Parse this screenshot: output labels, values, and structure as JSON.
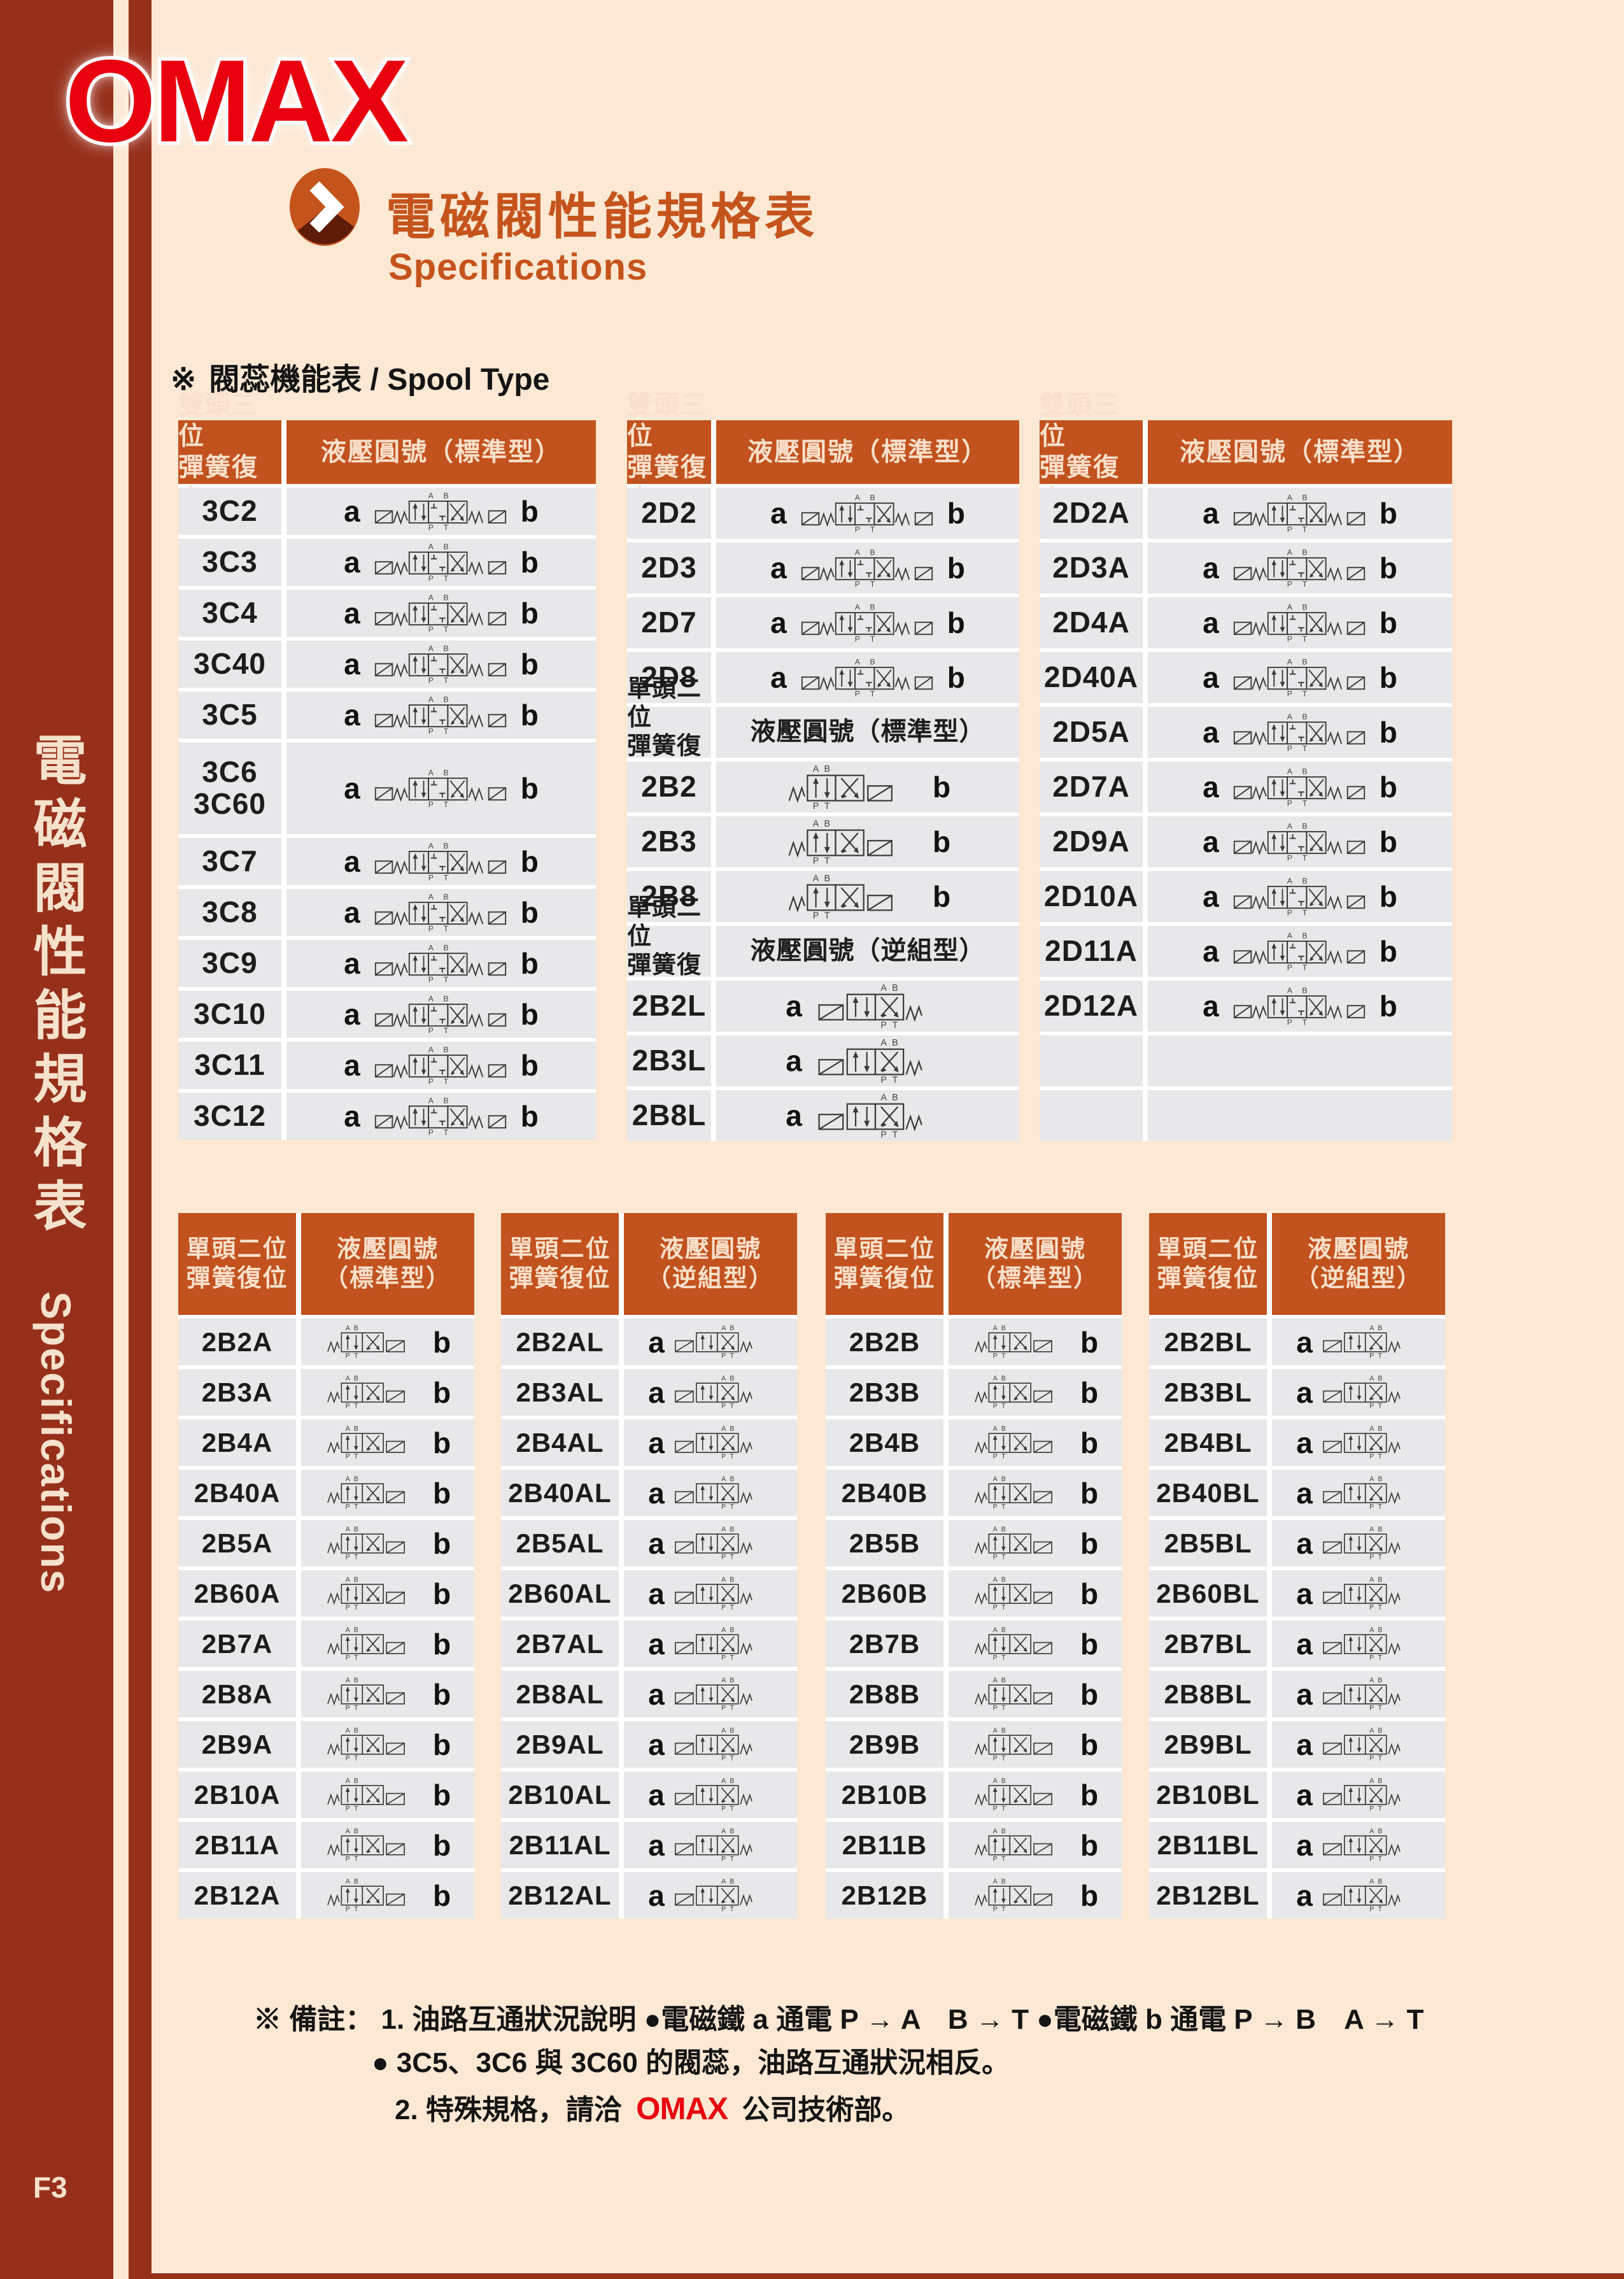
{
  "colors": {
    "page_bg": "#FCE8D3",
    "panel_red": "#97301B",
    "header_orange": "#C2521E",
    "cell_gray": "#E8E7E9",
    "title_orange": "#C5541C",
    "logo_red": "#E8000F",
    "header_text": "#F9E0CB"
  },
  "logo": {
    "text": "OMAX"
  },
  "sidebar": {
    "vertical_title": "電磁閥性能規格表",
    "vertical_subtitle": "Specifications",
    "page_number": "F3"
  },
  "header": {
    "title": "電磁閥性能規格表",
    "subtitle": "Specifications"
  },
  "section": {
    "marker": "※",
    "label": "閥蕊機能表 / Spool Type"
  },
  "top_tables": [
    {
      "header": {
        "col1": [
          "雙頭三位",
          "彈簧復中"
        ],
        "col2": [
          "液壓圓號（標準型）"
        ]
      },
      "rows": [
        {
          "code": [
            "3C2"
          ],
          "a": "a",
          "b": "b",
          "sym": "3pos"
        },
        {
          "code": [
            "3C3"
          ],
          "a": "a",
          "b": "b",
          "sym": "3pos"
        },
        {
          "code": [
            "3C4"
          ],
          "a": "a",
          "b": "b",
          "sym": "3pos"
        },
        {
          "code": [
            "3C40"
          ],
          "a": "a",
          "b": "b",
          "sym": "3pos"
        },
        {
          "code": [
            "3C5"
          ],
          "a": "a",
          "b": "b",
          "sym": "3pos"
        },
        {
          "code": [
            "3C6",
            "3C60"
          ],
          "a": "a",
          "b": "b",
          "sym": "3pos",
          "tall": true
        },
        {
          "code": [
            "3C7"
          ],
          "a": "a",
          "b": "b",
          "sym": "3pos"
        },
        {
          "code": [
            "3C8"
          ],
          "a": "a",
          "b": "b",
          "sym": "3pos"
        },
        {
          "code": [
            "3C9"
          ],
          "a": "a",
          "b": "b",
          "sym": "3pos"
        },
        {
          "code": [
            "3C10"
          ],
          "a": "a",
          "b": "b",
          "sym": "3pos"
        },
        {
          "code": [
            "3C11"
          ],
          "a": "a",
          "b": "b",
          "sym": "3pos"
        },
        {
          "code": [
            "3C12"
          ],
          "a": "a",
          "b": "b",
          "sym": "3pos"
        }
      ]
    },
    {
      "header": {
        "col1": [
          "雙頭三位",
          "彈簧復中"
        ],
        "col2": [
          "液壓圓號（標準型）"
        ]
      },
      "rows": [
        {
          "code": [
            "2D2"
          ],
          "a": "a",
          "b": "b",
          "sym": "3pos"
        },
        {
          "code": [
            "2D3"
          ],
          "a": "a",
          "b": "b",
          "sym": "3pos"
        },
        {
          "code": [
            "2D7"
          ],
          "a": "a",
          "b": "b",
          "sym": "3pos"
        },
        {
          "code": [
            "2D8"
          ],
          "a": "a",
          "b": "b",
          "sym": "3pos"
        },
        {
          "subheader": true,
          "col1": [
            "單頭二位",
            "彈簧復位"
          ],
          "col2": [
            "液壓圓號（標準型）"
          ]
        },
        {
          "code": [
            "2B2"
          ],
          "b": "b",
          "sym": "2b"
        },
        {
          "code": [
            "2B3"
          ],
          "b": "b",
          "sym": "2b"
        },
        {
          "code": [
            "2B8"
          ],
          "b": "b",
          "sym": "2b"
        },
        {
          "subheader": true,
          "col1": [
            "單頭二位",
            "彈簧復位"
          ],
          "col2": [
            "液壓圓號（逆組型）"
          ]
        },
        {
          "code": [
            "2B2L"
          ],
          "a": "a",
          "sym": "2a"
        },
        {
          "code": [
            "2B3L"
          ],
          "a": "a",
          "sym": "2a"
        },
        {
          "code": [
            "2B8L"
          ],
          "a": "a",
          "sym": "2a"
        }
      ]
    },
    {
      "header": {
        "col1": [
          "雙頭三位",
          "彈簧復中"
        ],
        "col2": [
          "液壓圓號（標準型）"
        ]
      },
      "rows": [
        {
          "code": [
            "2D2A"
          ],
          "a": "a",
          "b": "b",
          "sym": "3pos"
        },
        {
          "code": [
            "2D3A"
          ],
          "a": "a",
          "b": "b",
          "sym": "3pos"
        },
        {
          "code": [
            "2D4A"
          ],
          "a": "a",
          "b": "b",
          "sym": "3pos"
        },
        {
          "code": [
            "2D40A"
          ],
          "a": "a",
          "b": "b",
          "sym": "3pos"
        },
        {
          "code": [
            "2D5A"
          ],
          "a": "a",
          "b": "b",
          "sym": "3pos"
        },
        {
          "code": [
            "2D7A"
          ],
          "a": "a",
          "b": "b",
          "sym": "3pos"
        },
        {
          "code": [
            "2D9A"
          ],
          "a": "a",
          "b": "b",
          "sym": "3pos"
        },
        {
          "code": [
            "2D10A"
          ],
          "a": "a",
          "b": "b",
          "sym": "3pos"
        },
        {
          "code": [
            "2D11A"
          ],
          "a": "a",
          "b": "b",
          "sym": "3pos"
        },
        {
          "code": [
            "2D12A"
          ],
          "a": "a",
          "b": "b",
          "sym": "3pos"
        },
        {
          "empty": true
        },
        {
          "empty": true
        }
      ]
    }
  ],
  "bottom_tables": [
    {
      "header": {
        "col1": [
          "單頭二位",
          "彈簧復位"
        ],
        "col2": [
          "液壓圓號",
          "（標準型）"
        ]
      },
      "rows": [
        {
          "code": [
            "2B2A"
          ],
          "b": "b",
          "sym": "2b"
        },
        {
          "code": [
            "2B3A"
          ],
          "b": "b",
          "sym": "2b"
        },
        {
          "code": [
            "2B4A"
          ],
          "b": "b",
          "sym": "2b"
        },
        {
          "code": [
            "2B40A"
          ],
          "b": "b",
          "sym": "2b"
        },
        {
          "code": [
            "2B5A"
          ],
          "b": "b",
          "sym": "2b"
        },
        {
          "code": [
            "2B60A"
          ],
          "b": "b",
          "sym": "2b"
        },
        {
          "code": [
            "2B7A"
          ],
          "b": "b",
          "sym": "2b"
        },
        {
          "code": [
            "2B8A"
          ],
          "b": "b",
          "sym": "2b"
        },
        {
          "code": [
            "2B9A"
          ],
          "b": "b",
          "sym": "2b"
        },
        {
          "code": [
            "2B10A"
          ],
          "b": "b",
          "sym": "2b"
        },
        {
          "code": [
            "2B11A"
          ],
          "b": "b",
          "sym": "2b"
        },
        {
          "code": [
            "2B12A"
          ],
          "b": "b",
          "sym": "2b"
        }
      ]
    },
    {
      "header": {
        "col1": [
          "單頭二位",
          "彈簧復位"
        ],
        "col2": [
          "液壓圓號",
          "（逆組型）"
        ]
      },
      "rows": [
        {
          "code": [
            "2B2AL"
          ],
          "a": "a",
          "sym": "2a"
        },
        {
          "code": [
            "2B3AL"
          ],
          "a": "a",
          "sym": "2a"
        },
        {
          "code": [
            "2B4AL"
          ],
          "a": "a",
          "sym": "2a"
        },
        {
          "code": [
            "2B40AL"
          ],
          "a": "a",
          "sym": "2a"
        },
        {
          "code": [
            "2B5AL"
          ],
          "a": "a",
          "sym": "2a"
        },
        {
          "code": [
            "2B60AL"
          ],
          "a": "a",
          "sym": "2a"
        },
        {
          "code": [
            "2B7AL"
          ],
          "a": "a",
          "sym": "2a"
        },
        {
          "code": [
            "2B8AL"
          ],
          "a": "a",
          "sym": "2a"
        },
        {
          "code": [
            "2B9AL"
          ],
          "a": "a",
          "sym": "2a"
        },
        {
          "code": [
            "2B10AL"
          ],
          "a": "a",
          "sym": "2a"
        },
        {
          "code": [
            "2B11AL"
          ],
          "a": "a",
          "sym": "2a"
        },
        {
          "code": [
            "2B12AL"
          ],
          "a": "a",
          "sym": "2a"
        }
      ]
    },
    {
      "header": {
        "col1": [
          "單頭二位",
          "彈簧復位"
        ],
        "col2": [
          "液壓圓號",
          "（標準型）"
        ]
      },
      "rows": [
        {
          "code": [
            "2B2B"
          ],
          "b": "b",
          "sym": "2b"
        },
        {
          "code": [
            "2B3B"
          ],
          "b": "b",
          "sym": "2b"
        },
        {
          "code": [
            "2B4B"
          ],
          "b": "b",
          "sym": "2b"
        },
        {
          "code": [
            "2B40B"
          ],
          "b": "b",
          "sym": "2b"
        },
        {
          "code": [
            "2B5B"
          ],
          "b": "b",
          "sym": "2b"
        },
        {
          "code": [
            "2B60B"
          ],
          "b": "b",
          "sym": "2b"
        },
        {
          "code": [
            "2B7B"
          ],
          "b": "b",
          "sym": "2b"
        },
        {
          "code": [
            "2B8B"
          ],
          "b": "b",
          "sym": "2b"
        },
        {
          "code": [
            "2B9B"
          ],
          "b": "b",
          "sym": "2b"
        },
        {
          "code": [
            "2B10B"
          ],
          "b": "b",
          "sym": "2b"
        },
        {
          "code": [
            "2B11B"
          ],
          "b": "b",
          "sym": "2b"
        },
        {
          "code": [
            "2B12B"
          ],
          "b": "b",
          "sym": "2b"
        }
      ]
    },
    {
      "header": {
        "col1": [
          "單頭二位",
          "彈簧復位"
        ],
        "col2": [
          "液壓圓號",
          "（逆組型）"
        ]
      },
      "rows": [
        {
          "code": [
            "2B2BL"
          ],
          "a": "a",
          "sym": "2a"
        },
        {
          "code": [
            "2B3BL"
          ],
          "a": "a",
          "sym": "2a"
        },
        {
          "code": [
            "2B4BL"
          ],
          "a": "a",
          "sym": "2a"
        },
        {
          "code": [
            "2B40BL"
          ],
          "a": "a",
          "sym": "2a"
        },
        {
          "code": [
            "2B5BL"
          ],
          "a": "a",
          "sym": "2a"
        },
        {
          "code": [
            "2B60BL"
          ],
          "a": "a",
          "sym": "2a"
        },
        {
          "code": [
            "2B7BL"
          ],
          "a": "a",
          "sym": "2a"
        },
        {
          "code": [
            "2B8BL"
          ],
          "a": "a",
          "sym": "2a"
        },
        {
          "code": [
            "2B9BL"
          ],
          "a": "a",
          "sym": "2a"
        },
        {
          "code": [
            "2B10BL"
          ],
          "a": "a",
          "sym": "2a"
        },
        {
          "code": [
            "2B11BL"
          ],
          "a": "a",
          "sym": "2a"
        },
        {
          "code": [
            "2B12BL"
          ],
          "a": "a",
          "sym": "2a"
        }
      ]
    }
  ],
  "footnote": {
    "marker": "※",
    "label": "備註：",
    "line1": "1. 油路互通狀況說明 ●電磁鐵 a 通電 P → A　B → T ●電磁鐵 b 通電 P → B　A → T",
    "line2": "● 3C5、3C6 與 3C60 的閥蕊，油路互通狀況相反。",
    "line3_pre": "2. 特殊規格，請洽",
    "line3_logo": "OMAX",
    "line3_post": "公司技術部。"
  }
}
